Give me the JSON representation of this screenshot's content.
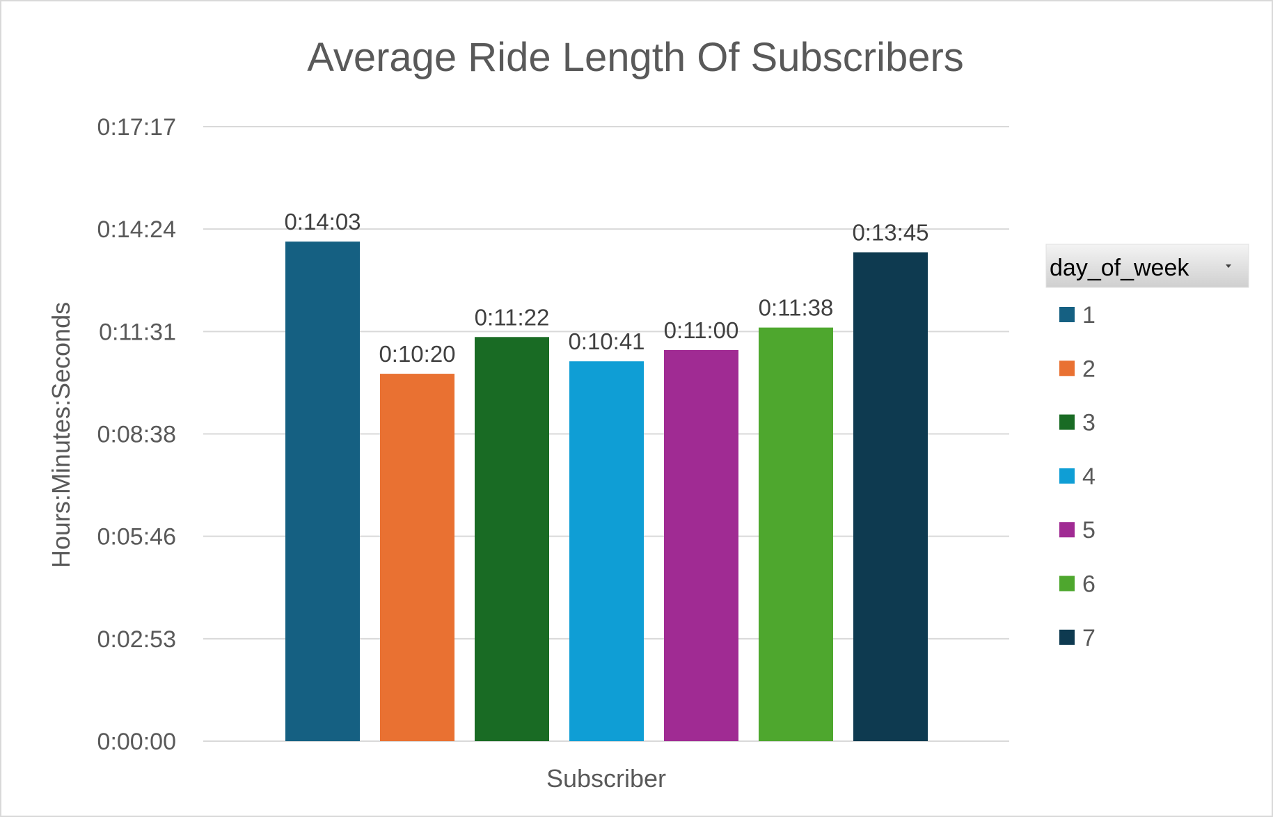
{
  "chart_data": {
    "type": "bar",
    "title": "Average Ride Length Of Subscribers",
    "xlabel": "Subscriber",
    "ylabel": "Hours:Minutes:Seconds",
    "categories": [
      "Subscriber"
    ],
    "y_ticks": [
      "0:00:00",
      "0:02:53",
      "0:05:46",
      "0:08:38",
      "0:11:31",
      "0:14:24",
      "0:17:17"
    ],
    "ylim_seconds": [
      0,
      1037
    ],
    "grid": true,
    "legend": {
      "title": "day_of_week",
      "placement": "right",
      "filter_button": "dropdown-arrow-icon"
    },
    "series": [
      {
        "name": "1",
        "value": "0:14:03",
        "seconds": 843,
        "color": "#156082"
      },
      {
        "name": "2",
        "value": "0:10:20",
        "seconds": 620,
        "color": "#E97132"
      },
      {
        "name": "3",
        "value": "0:11:22",
        "seconds": 682,
        "color": "#196B24"
      },
      {
        "name": "4",
        "value": "0:10:41",
        "seconds": 641,
        "color": "#0F9ED5"
      },
      {
        "name": "5",
        "value": "0:11:00",
        "seconds": 660,
        "color": "#A02B93"
      },
      {
        "name": "6",
        "value": "0:11:38",
        "seconds": 698,
        "color": "#4EA72E"
      },
      {
        "name": "7",
        "value": "0:13:45",
        "seconds": 825,
        "color": "#0E3A50"
      }
    ]
  }
}
